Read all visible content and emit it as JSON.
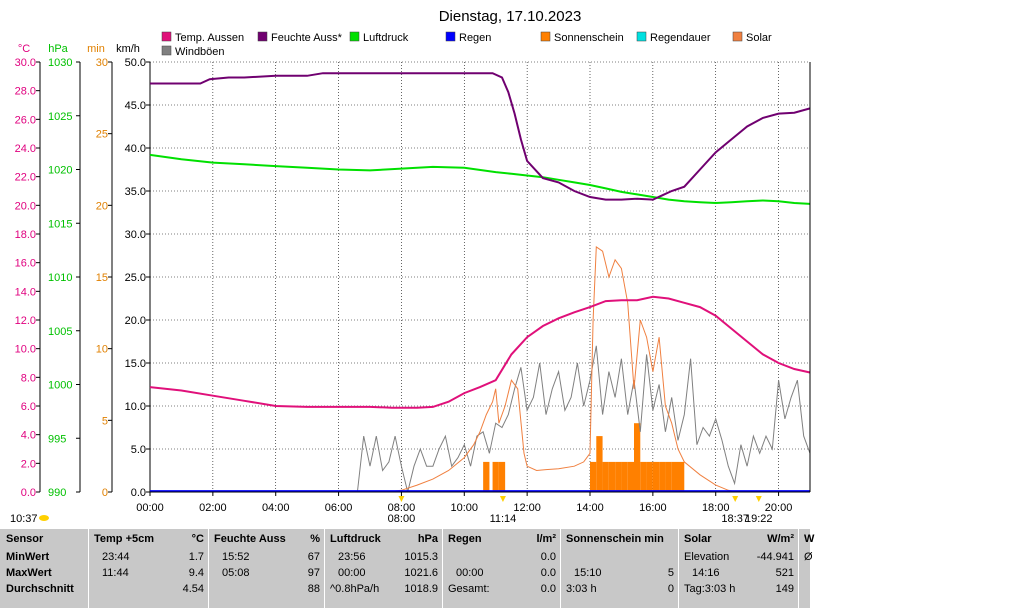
{
  "chart_data": {
    "type": "line",
    "title": "Dienstag, 17.10.2023",
    "x_range_hours": [
      0,
      21
    ],
    "x_ticks": [
      "00:00",
      "02:00",
      "04:00",
      "06:00",
      "08:00",
      "10:00",
      "12:00",
      "14:00",
      "16:00",
      "18:00",
      "20:00"
    ],
    "axes": [
      {
        "unit": "°C",
        "min": 0,
        "max": 30,
        "color": "#e0007f",
        "ticks": [
          "0.0",
          "2.0",
          "4.0",
          "6.0",
          "8.0",
          "10.0",
          "12.0",
          "14.0",
          "16.0",
          "18.0",
          "20.0",
          "22.0",
          "24.0",
          "26.0",
          "28.0",
          "30.0"
        ]
      },
      {
        "unit": "hPa",
        "min": 990,
        "max": 1030,
        "color": "#00c000",
        "ticks": [
          "990",
          "995",
          "1000",
          "1005",
          "1010",
          "1015",
          "1020",
          "1025",
          "1030"
        ]
      },
      {
        "unit": "min",
        "min": 0,
        "max": 30,
        "color": "#e08000",
        "ticks": [
          "0",
          "5",
          "10",
          "15",
          "20",
          "25",
          "30"
        ]
      },
      {
        "unit": "km/h",
        "min": 0,
        "max": 50,
        "color": "#000000",
        "ticks": [
          "0.0",
          "5.0",
          "10.0",
          "15.0",
          "20.0",
          "25.0",
          "30.0",
          "35.0",
          "40.0",
          "45.0",
          "50.0"
        ]
      }
    ],
    "legend": [
      {
        "name": "Temp. Aussen",
        "color": "#e0107a"
      },
      {
        "name": "Feuchte Auss*",
        "color": "#700070"
      },
      {
        "name": "Luftdruck",
        "color": "#00e000"
      },
      {
        "name": "Regen",
        "color": "#0000ff"
      },
      {
        "name": "Sonnenschein",
        "color": "#ff8000"
      },
      {
        "name": "Regendauer",
        "color": "#00e0e0"
      },
      {
        "name": "Solar",
        "color": "#f08040"
      },
      {
        "name": "Windböen",
        "color": "#808080"
      }
    ],
    "series": [
      {
        "name": "Temp. Aussen",
        "axis": "km/h",
        "color": "#e0107a",
        "x": [
          0,
          1,
          2,
          3,
          4,
          5,
          6,
          7,
          7.7,
          8.5,
          9,
          9.5,
          10,
          10.5,
          11,
          11.5,
          12,
          12.5,
          13,
          13.5,
          14,
          14.5,
          15,
          15.5,
          16,
          16.5,
          17,
          17.5,
          18,
          18.5,
          19,
          19.5,
          20,
          20.5,
          21
        ],
        "y": [
          12.2,
          11.8,
          11.2,
          10.6,
          10.0,
          9.9,
          9.9,
          9.9,
          9.8,
          9.8,
          9.9,
          10.5,
          11.5,
          12.2,
          13.0,
          16.0,
          18.0,
          19.3,
          20.2,
          20.9,
          21.5,
          22.2,
          22.3,
          22.3,
          22.7,
          22.5,
          22.0,
          21.5,
          20.5,
          19.0,
          17.5,
          16.0,
          15.0,
          14.3,
          13.9
        ]
      },
      {
        "name": "Feuchte Auss*",
        "axis": "km/h",
        "color": "#700070",
        "x": [
          0,
          1.6,
          1.9,
          2.5,
          3,
          4,
          5,
          5.5,
          6,
          7,
          8,
          9,
          10,
          10.9,
          11.2,
          11.4,
          11.6,
          11.8,
          12,
          12.5,
          13,
          13.5,
          14,
          14.5,
          15,
          15.5,
          16,
          16.3,
          16.6,
          17,
          17.5,
          18,
          18.5,
          19,
          19.5,
          20,
          20.5,
          21
        ],
        "y": [
          47.5,
          47.5,
          48.0,
          48.2,
          48.2,
          48.4,
          48.4,
          48.7,
          48.7,
          48.7,
          48.7,
          48.7,
          48.7,
          48.7,
          48.2,
          46.5,
          44.0,
          41.0,
          38.5,
          36.5,
          36.0,
          35.0,
          34.3,
          34.0,
          34.0,
          34.1,
          34.0,
          34.5,
          35.0,
          35.5,
          37.5,
          39.5,
          41.0,
          42.5,
          43.5,
          44.0,
          44.1,
          44.6
        ]
      },
      {
        "name": "Luftdruck",
        "axis": "km/h",
        "color": "#00e000",
        "x": [
          0,
          1,
          2,
          3,
          4,
          5,
          6,
          7,
          8,
          9,
          10,
          11,
          11.5,
          12,
          12.5,
          13,
          13.5,
          14,
          14.5,
          15,
          15.5,
          16,
          16.5,
          17,
          17.5,
          18,
          18.5,
          19,
          19.5,
          20,
          20.5,
          21
        ],
        "y": [
          39.2,
          38.7,
          38.3,
          38.1,
          37.9,
          37.7,
          37.5,
          37.4,
          37.6,
          37.8,
          37.7,
          37.2,
          37.0,
          36.8,
          36.6,
          36.3,
          36.0,
          35.7,
          35.3,
          34.9,
          34.6,
          34.3,
          34.0,
          33.8,
          33.7,
          33.6,
          33.7,
          33.8,
          33.9,
          33.8,
          33.6,
          33.5
        ]
      },
      {
        "name": "Regen",
        "axis": "km/h",
        "color": "#0000ff",
        "x": [
          0,
          21
        ],
        "y": [
          0.1,
          0.1
        ]
      },
      {
        "name": "Solar",
        "axis": "km/h",
        "color": "#f08040",
        "x": [
          7.5,
          8,
          8.5,
          9,
          9.5,
          10,
          10.3,
          10.5,
          10.7,
          10.9,
          11.0,
          11.1,
          11.3,
          11.5,
          11.7,
          11.9,
          12,
          12.3,
          12.6,
          13,
          13.5,
          13.8,
          14,
          14.1,
          14.2,
          14.4,
          14.6,
          14.8,
          15,
          15.2,
          15.4,
          15.6,
          15.8,
          16,
          16.2,
          16.4,
          16.6,
          16.8,
          17,
          17.5,
          18,
          18.4,
          18.7
        ],
        "y": [
          0.0,
          0.2,
          0.8,
          1.5,
          2.5,
          4.0,
          5.5,
          7.0,
          9.0,
          10.5,
          12.0,
          8.0,
          10.0,
          13.0,
          12.0,
          4.5,
          3.0,
          2.5,
          2.6,
          2.7,
          3.0,
          3.5,
          4.5,
          20.0,
          28.5,
          28.0,
          25.0,
          27.0,
          26.0,
          22.0,
          12.0,
          20.0,
          18.0,
          14.0,
          18.0,
          10.0,
          8.0,
          5.0,
          3.5,
          2.0,
          0.8,
          0.2,
          0.0
        ]
      },
      {
        "name": "Windböen",
        "axis": "km/h",
        "color": "#808080",
        "x": [
          6.6,
          6.8,
          7.0,
          7.2,
          7.4,
          7.6,
          7.8,
          8.0,
          8.2,
          8.4,
          8.6,
          8.8,
          9.0,
          9.2,
          9.4,
          9.6,
          9.8,
          10.0,
          10.2,
          10.4,
          10.6,
          10.8,
          11.0,
          11.2,
          11.4,
          11.6,
          11.8,
          12.0,
          12.2,
          12.4,
          12.6,
          12.8,
          13.0,
          13.2,
          13.4,
          13.6,
          13.8,
          14.0,
          14.2,
          14.4,
          14.6,
          14.8,
          15.0,
          15.2,
          15.4,
          15.6,
          15.8,
          16.0,
          16.2,
          16.4,
          16.6,
          16.8,
          17.0,
          17.2,
          17.4,
          17.6,
          17.8,
          18.0,
          18.2,
          18.4,
          18.6,
          18.8,
          19.0,
          19.2,
          19.4,
          19.6,
          19.8,
          20.0,
          20.2,
          20.4,
          20.6,
          20.8,
          21.0
        ],
        "y": [
          0,
          6.5,
          3.0,
          6.5,
          2.5,
          3.5,
          6.5,
          3.0,
          0,
          3.0,
          5.0,
          3.0,
          3.0,
          5.0,
          6.5,
          3.0,
          4.0,
          5.5,
          3.0,
          6.5,
          7.0,
          4.5,
          8.0,
          7.5,
          9.0,
          12.0,
          14.5,
          9.5,
          11.0,
          15.0,
          9.0,
          12.0,
          14.0,
          9.5,
          11.0,
          15.0,
          10.0,
          13.0,
          17.0,
          9.0,
          14.0,
          11.0,
          15.5,
          9.0,
          13.0,
          7.0,
          16.0,
          9.5,
          12.5,
          7.0,
          11.0,
          6.0,
          9.0,
          15.5,
          5.5,
          7.5,
          6.5,
          8.5,
          6.0,
          3.0,
          1.0,
          5.5,
          3.0,
          6.5,
          4.5,
          6.5,
          5.0,
          13.0,
          8.5,
          11.0,
          13.0,
          6.5,
          4.5
        ]
      },
      {
        "name": "Sonnenschein",
        "axis": "km/h",
        "type": "bar",
        "color": "#ff8000",
        "x": [
          10.6,
          10.9,
          11.1,
          14.0,
          14.2,
          14.4,
          14.6,
          14.8,
          15.0,
          15.2,
          15.4,
          15.6,
          15.8,
          16.0,
          16.2,
          16.4,
          16.6,
          16.8
        ],
        "y": [
          3.5,
          3.5,
          3.5,
          3.5,
          6.5,
          3.5,
          3.5,
          3.5,
          3.5,
          3.5,
          8.0,
          3.5,
          3.5,
          3.5,
          3.5,
          3.5,
          3.5,
          3.5
        ]
      }
    ],
    "annotations": [
      {
        "x": 8.0,
        "text": "08:00"
      },
      {
        "x": 11.23,
        "text": "11:14"
      },
      {
        "x": 18.62,
        "text": "18:37"
      },
      {
        "x": 19.37,
        "text": "19:22"
      }
    ],
    "left_note": "10:37"
  },
  "stats": [
    {
      "title": "Sensor",
      "unit": "",
      "rows": [
        [
          "MinWert",
          "",
          ""
        ],
        [
          "MaxWert",
          "",
          ""
        ],
        [
          "Durchschnitt",
          "",
          ""
        ]
      ]
    },
    {
      "title": "Temp +5cm",
      "unit": "°C",
      "rows": [
        [
          "23:44",
          "",
          "1.7"
        ],
        [
          "11:44",
          "",
          "9.4"
        ],
        [
          "",
          "",
          "4.54"
        ]
      ]
    },
    {
      "title": "Feuchte Auss",
      "unit": "%",
      "rows": [
        [
          "15:52",
          "",
          "67"
        ],
        [
          "05:08",
          "",
          "97"
        ],
        [
          "",
          "",
          "88"
        ]
      ]
    },
    {
      "title": "Luftdruck",
      "unit": "hPa",
      "rows": [
        [
          "23:56",
          "",
          "1015.3"
        ],
        [
          "00:00",
          "",
          "1021.6"
        ],
        [
          "^0.8hPa/h",
          "",
          "1018.9"
        ]
      ]
    },
    {
      "title": "Regen",
      "unit": "l/m²",
      "rows": [
        [
          "",
          "",
          "0.0"
        ],
        [
          "00:00",
          "",
          "0.0"
        ],
        [
          "Gesamt:",
          "",
          "0.0"
        ]
      ]
    },
    {
      "title": "Sonnenschein min",
      "unit": "",
      "rows": [
        [
          "",
          "",
          ""
        ],
        [
          "15:10",
          "",
          "5"
        ],
        [
          "3:03 h",
          "",
          "0"
        ]
      ]
    },
    {
      "title": "Solar",
      "unit": "W/m²",
      "rows": [
        [
          "Elevation",
          "",
          "-44.941"
        ],
        [
          "14:16",
          "",
          "521"
        ],
        [
          "Tag:3:03 h",
          "",
          "149"
        ]
      ]
    },
    {
      "title": "W",
      "unit": "",
      "rows": [
        [
          "Ø",
          "",
          ""
        ],
        [
          "",
          "",
          ""
        ],
        [
          "",
          "",
          ""
        ]
      ]
    }
  ]
}
